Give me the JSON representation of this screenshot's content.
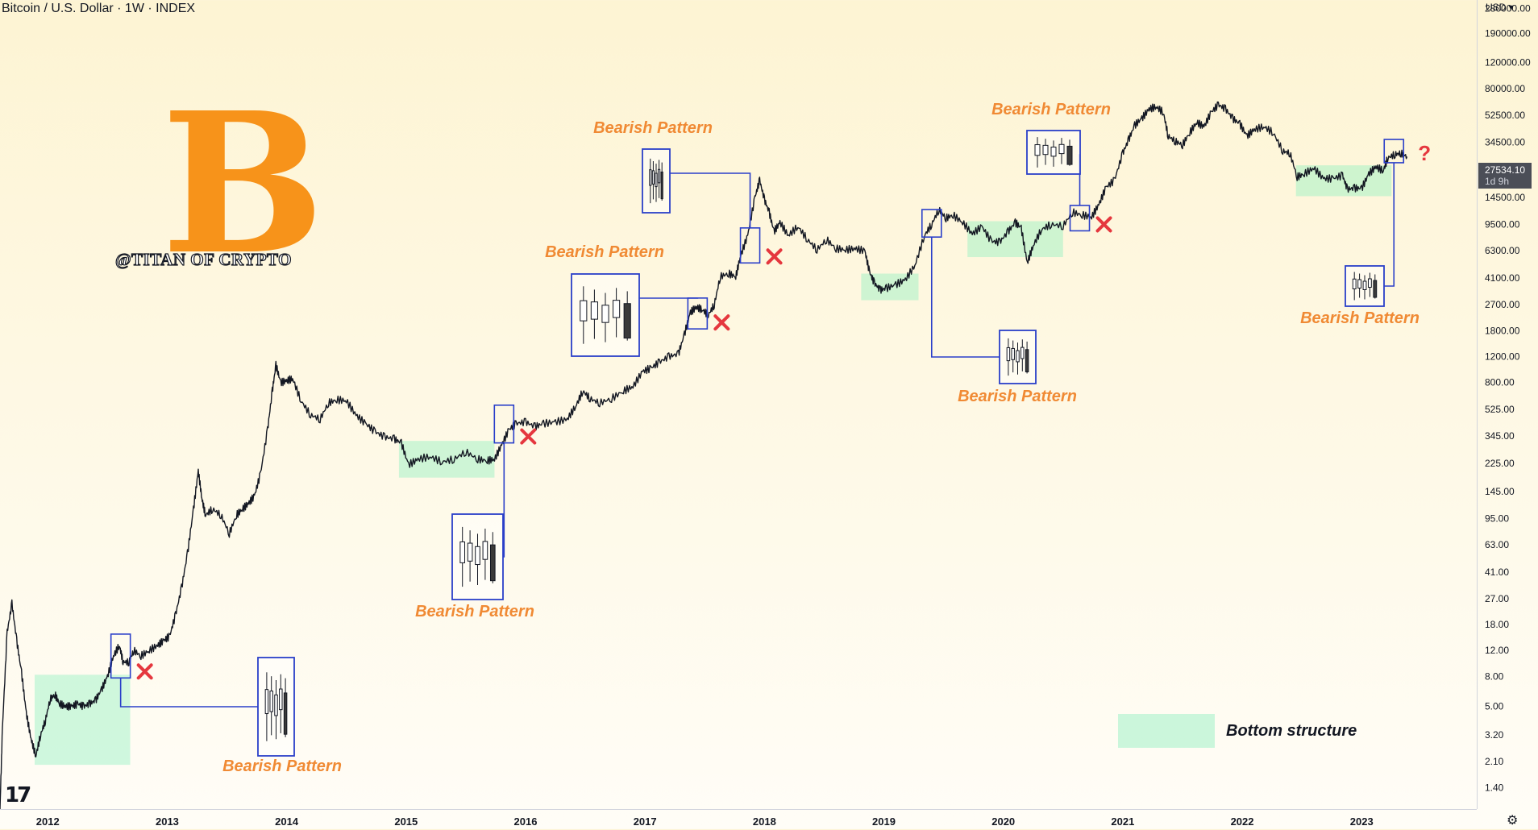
{
  "header": {
    "title": "Bitcoin / U.S. Dollar · 1W · INDEX"
  },
  "watermark": "@TITAN OF CRYPTO",
  "btc_symbol": "B",
  "tv_logo": "17",
  "price_axis": {
    "currency": "USD",
    "current_price": "27534.10",
    "countdown": "1d 9h"
  },
  "legend": {
    "label": "Bottom structure"
  },
  "colors": {
    "annotation_text": "#f08a34",
    "box_stroke": "#2a3fc9",
    "bottom_fill": "#8cf0be",
    "cross": "#e5373e",
    "candle": "#131722"
  },
  "chart_data": {
    "type": "line",
    "title": "Bitcoin / U.S. Dollar · 1W · INDEX",
    "scale": "log",
    "x_label": "",
    "y_label": "",
    "x_ticks": [
      "2012",
      "2013",
      "2014",
      "2015",
      "2016",
      "2017",
      "2018",
      "2019",
      "2020",
      "2021",
      "2022",
      "2023"
    ],
    "y_ticks": [
      1.4,
      2.1,
      3.2,
      5.0,
      8.0,
      12.0,
      18.0,
      27.0,
      41.0,
      63.0,
      95.0,
      145.0,
      225.0,
      345.0,
      525.0,
      800.0,
      1200.0,
      1800.0,
      2700.0,
      4100.0,
      6300.0,
      9500.0,
      14500.0,
      22000.0,
      34500.0,
      52500.0,
      80000.0,
      120000.0,
      190000.0,
      280000.0
    ],
    "y_tick_labels": [
      "1.40",
      "2.10",
      "3.20",
      "5.00",
      "8.00",
      "12.00",
      "18.00",
      "27.00",
      "41.00",
      "63.00",
      "95.00",
      "145.00",
      "225.00",
      "345.00",
      "525.00",
      "800.00",
      "1200.00",
      "1800.00",
      "2700.00",
      "4100.00",
      "6300.00",
      "9500.00",
      "14500.00",
      "22000.00",
      "34500.00",
      "52500.00",
      "80000.00",
      "120000.00",
      "190000.00",
      "280000.00"
    ],
    "ylim": [
      1.0,
      320000
    ],
    "xlim": [
      2011.6,
      2023.95
    ],
    "series": [
      {
        "values": [
          [
            2011.6,
            1.0
          ],
          [
            2011.62,
            3.5
          ],
          [
            2011.66,
            16
          ],
          [
            2011.7,
            25
          ],
          [
            2011.74,
            14
          ],
          [
            2011.78,
            8.5
          ],
          [
            2011.82,
            4.5
          ],
          [
            2011.86,
            3.0
          ],
          [
            2011.9,
            2.3
          ],
          [
            2011.94,
            3.2
          ],
          [
            2011.98,
            4.0
          ],
          [
            2012.02,
            5.6
          ],
          [
            2012.06,
            6.0
          ],
          [
            2012.1,
            5.2
          ],
          [
            2012.15,
            5.0
          ],
          [
            2012.2,
            5.0
          ],
          [
            2012.25,
            5.2
          ],
          [
            2012.3,
            5.0
          ],
          [
            2012.35,
            5.2
          ],
          [
            2012.4,
            5.5
          ],
          [
            2012.45,
            6.5
          ],
          [
            2012.5,
            8.0
          ],
          [
            2012.55,
            11
          ],
          [
            2012.6,
            13
          ],
          [
            2012.63,
            10
          ],
          [
            2012.68,
            10
          ],
          [
            2012.72,
            12
          ],
          [
            2012.78,
            11
          ],
          [
            2012.85,
            12
          ],
          [
            2012.92,
            13
          ],
          [
            2012.97,
            14
          ],
          [
            2013.02,
            15
          ],
          [
            2013.07,
            21
          ],
          [
            2013.12,
            32
          ],
          [
            2013.17,
            55
          ],
          [
            2013.22,
            110
          ],
          [
            2013.26,
            200
          ],
          [
            2013.29,
            130
          ],
          [
            2013.32,
            100
          ],
          [
            2013.38,
            110
          ],
          [
            2013.45,
            100
          ],
          [
            2013.52,
            75
          ],
          [
            2013.58,
            100
          ],
          [
            2013.63,
            110
          ],
          [
            2013.68,
            120
          ],
          [
            2013.73,
            135
          ],
          [
            2013.78,
            190
          ],
          [
            2013.84,
            380
          ],
          [
            2013.88,
            700
          ],
          [
            2013.91,
            1050
          ],
          [
            2013.95,
            800
          ],
          [
            2014.0,
            820
          ],
          [
            2014.05,
            850
          ],
          [
            2014.12,
            600
          ],
          [
            2014.2,
            480
          ],
          [
            2014.28,
            450
          ],
          [
            2014.35,
            580
          ],
          [
            2014.42,
            610
          ],
          [
            2014.5,
            600
          ],
          [
            2014.58,
            480
          ],
          [
            2014.66,
            420
          ],
          [
            2014.74,
            370
          ],
          [
            2014.82,
            340
          ],
          [
            2014.9,
            330
          ],
          [
            2014.96,
            310
          ],
          [
            2015.02,
            220
          ],
          [
            2015.1,
            240
          ],
          [
            2015.2,
            250
          ],
          [
            2015.3,
            230
          ],
          [
            2015.4,
            240
          ],
          [
            2015.5,
            270
          ],
          [
            2015.6,
            240
          ],
          [
            2015.68,
            235
          ],
          [
            2015.74,
            240
          ],
          [
            2015.8,
            300
          ],
          [
            2015.86,
            380
          ],
          [
            2015.92,
            420
          ],
          [
            2016.0,
            430
          ],
          [
            2016.08,
            400
          ],
          [
            2016.15,
            420
          ],
          [
            2016.25,
            430
          ],
          [
            2016.35,
            450
          ],
          [
            2016.42,
            550
          ],
          [
            2016.48,
            700
          ],
          [
            2016.54,
            620
          ],
          [
            2016.62,
            580
          ],
          [
            2016.72,
            620
          ],
          [
            2016.82,
            700
          ],
          [
            2016.9,
            750
          ],
          [
            2016.98,
            950
          ],
          [
            2017.05,
            1000
          ],
          [
            2017.12,
            1100
          ],
          [
            2017.2,
            1200
          ],
          [
            2017.28,
            1250
          ],
          [
            2017.33,
            1700
          ],
          [
            2017.38,
            2400
          ],
          [
            2017.43,
            2600
          ],
          [
            2017.48,
            2500
          ],
          [
            2017.53,
            2300
          ],
          [
            2017.58,
            2700
          ],
          [
            2017.63,
            4200
          ],
          [
            2017.7,
            4400
          ],
          [
            2017.76,
            4200
          ],
          [
            2017.8,
            5800
          ],
          [
            2017.86,
            8000
          ],
          [
            2017.92,
            14500
          ],
          [
            2017.96,
            19000
          ],
          [
            2018.0,
            14000
          ],
          [
            2018.04,
            11500
          ],
          [
            2018.08,
            8500
          ],
          [
            2018.13,
            9800
          ],
          [
            2018.2,
            8000
          ],
          [
            2018.28,
            9200
          ],
          [
            2018.36,
            7500
          ],
          [
            2018.44,
            6400
          ],
          [
            2018.52,
            7500
          ],
          [
            2018.6,
            6500
          ],
          [
            2018.68,
            6400
          ],
          [
            2018.76,
            6500
          ],
          [
            2018.84,
            6300
          ],
          [
            2018.88,
            4500
          ],
          [
            2018.92,
            3800
          ],
          [
            2018.97,
            3400
          ],
          [
            2019.02,
            3500
          ],
          [
            2019.1,
            3700
          ],
          [
            2019.18,
            4000
          ],
          [
            2019.26,
            5000
          ],
          [
            2019.34,
            8000
          ],
          [
            2019.4,
            9500
          ],
          [
            2019.46,
            12000
          ],
          [
            2019.52,
            10500
          ],
          [
            2019.58,
            11000
          ],
          [
            2019.66,
            9800
          ],
          [
            2019.74,
            8200
          ],
          [
            2019.82,
            9200
          ],
          [
            2019.9,
            7300
          ],
          [
            2019.97,
            7200
          ],
          [
            2020.04,
            8500
          ],
          [
            2020.1,
            9800
          ],
          [
            2020.15,
            9000
          ],
          [
            2020.2,
            5200
          ],
          [
            2020.25,
            6800
          ],
          [
            2020.32,
            8800
          ],
          [
            2020.4,
            9500
          ],
          [
            2020.5,
            9300
          ],
          [
            2020.58,
            11500
          ],
          [
            2020.66,
            11000
          ],
          [
            2020.74,
            10700
          ],
          [
            2020.8,
            13000
          ],
          [
            2020.86,
            17000
          ],
          [
            2020.93,
            19000
          ],
          [
            2021.0,
            29000
          ],
          [
            2021.05,
            36000
          ],
          [
            2021.1,
            45000
          ],
          [
            2021.16,
            50000
          ],
          [
            2021.22,
            58000
          ],
          [
            2021.28,
            60000
          ],
          [
            2021.34,
            55000
          ],
          [
            2021.38,
            38000
          ],
          [
            2021.44,
            35000
          ],
          [
            2021.5,
            33000
          ],
          [
            2021.56,
            40000
          ],
          [
            2021.62,
            47000
          ],
          [
            2021.68,
            44000
          ],
          [
            2021.74,
            55000
          ],
          [
            2021.8,
            62000
          ],
          [
            2021.86,
            58000
          ],
          [
            2021.92,
            50000
          ],
          [
            2021.98,
            46000
          ],
          [
            2022.04,
            38000
          ],
          [
            2022.1,
            42000
          ],
          [
            2022.18,
            44000
          ],
          [
            2022.26,
            40000
          ],
          [
            2022.34,
            30000
          ],
          [
            2022.4,
            29000
          ],
          [
            2022.46,
            20000
          ],
          [
            2022.52,
            21000
          ],
          [
            2022.6,
            23000
          ],
          [
            2022.68,
            19500
          ],
          [
            2022.76,
            19500
          ],
          [
            2022.84,
            20500
          ],
          [
            2022.88,
            16500
          ],
          [
            2022.94,
            16800
          ],
          [
            2023.0,
            16700
          ],
          [
            2023.06,
            21000
          ],
          [
            2023.12,
            23500
          ],
          [
            2023.18,
            22000
          ],
          [
            2023.22,
            27000
          ],
          [
            2023.28,
            28500
          ],
          [
            2023.33,
            29000
          ],
          [
            2023.38,
            27500
          ]
        ]
      }
    ],
    "bottom_structures": [
      {
        "x_start": 2011.89,
        "x_end": 2012.69,
        "y_low": 2.0,
        "y_high": 8.2
      },
      {
        "x_start": 2014.94,
        "x_end": 2015.74,
        "y_low": 180,
        "y_high": 320
      },
      {
        "x_start": 2018.81,
        "x_end": 2019.29,
        "y_low": 2900,
        "y_high": 4400
      },
      {
        "x_start": 2019.7,
        "x_end": 2020.5,
        "y_low": 5700,
        "y_high": 10000
      },
      {
        "x_start": 2022.45,
        "x_end": 2023.25,
        "y_low": 14800,
        "y_high": 24000
      }
    ],
    "annotations": [
      {
        "label": "Bearish Pattern",
        "signal_x": 2012.61,
        "signal_y_low": 7.8,
        "signal_y_high": 15.5,
        "cross": true
      },
      {
        "label": "Bearish Pattern",
        "signal_x": 2015.82,
        "signal_y_low": 310,
        "signal_y_high": 560,
        "cross": true
      },
      {
        "label": "Bearish Pattern",
        "signal_x": 2017.44,
        "signal_y_low": 1850,
        "signal_y_high": 3000,
        "cross": true
      },
      {
        "label": "Bearish Pattern",
        "signal_x": 2017.88,
        "signal_y_low": 5200,
        "signal_y_high": 9000,
        "cross": true
      },
      {
        "label": "Bearish Pattern",
        "signal_x": 2019.4,
        "signal_y_low": 7800,
        "signal_y_high": 12000,
        "cross": false
      },
      {
        "label": "Bearish Pattern",
        "signal_x": 2020.64,
        "signal_y_low": 8600,
        "signal_y_high": 12800,
        "cross": true
      },
      {
        "label": "Bearish Pattern",
        "signal_x": 2023.27,
        "signal_y_low": 25000,
        "signal_y_high": 36000,
        "cross": false,
        "question": "?"
      }
    ]
  }
}
